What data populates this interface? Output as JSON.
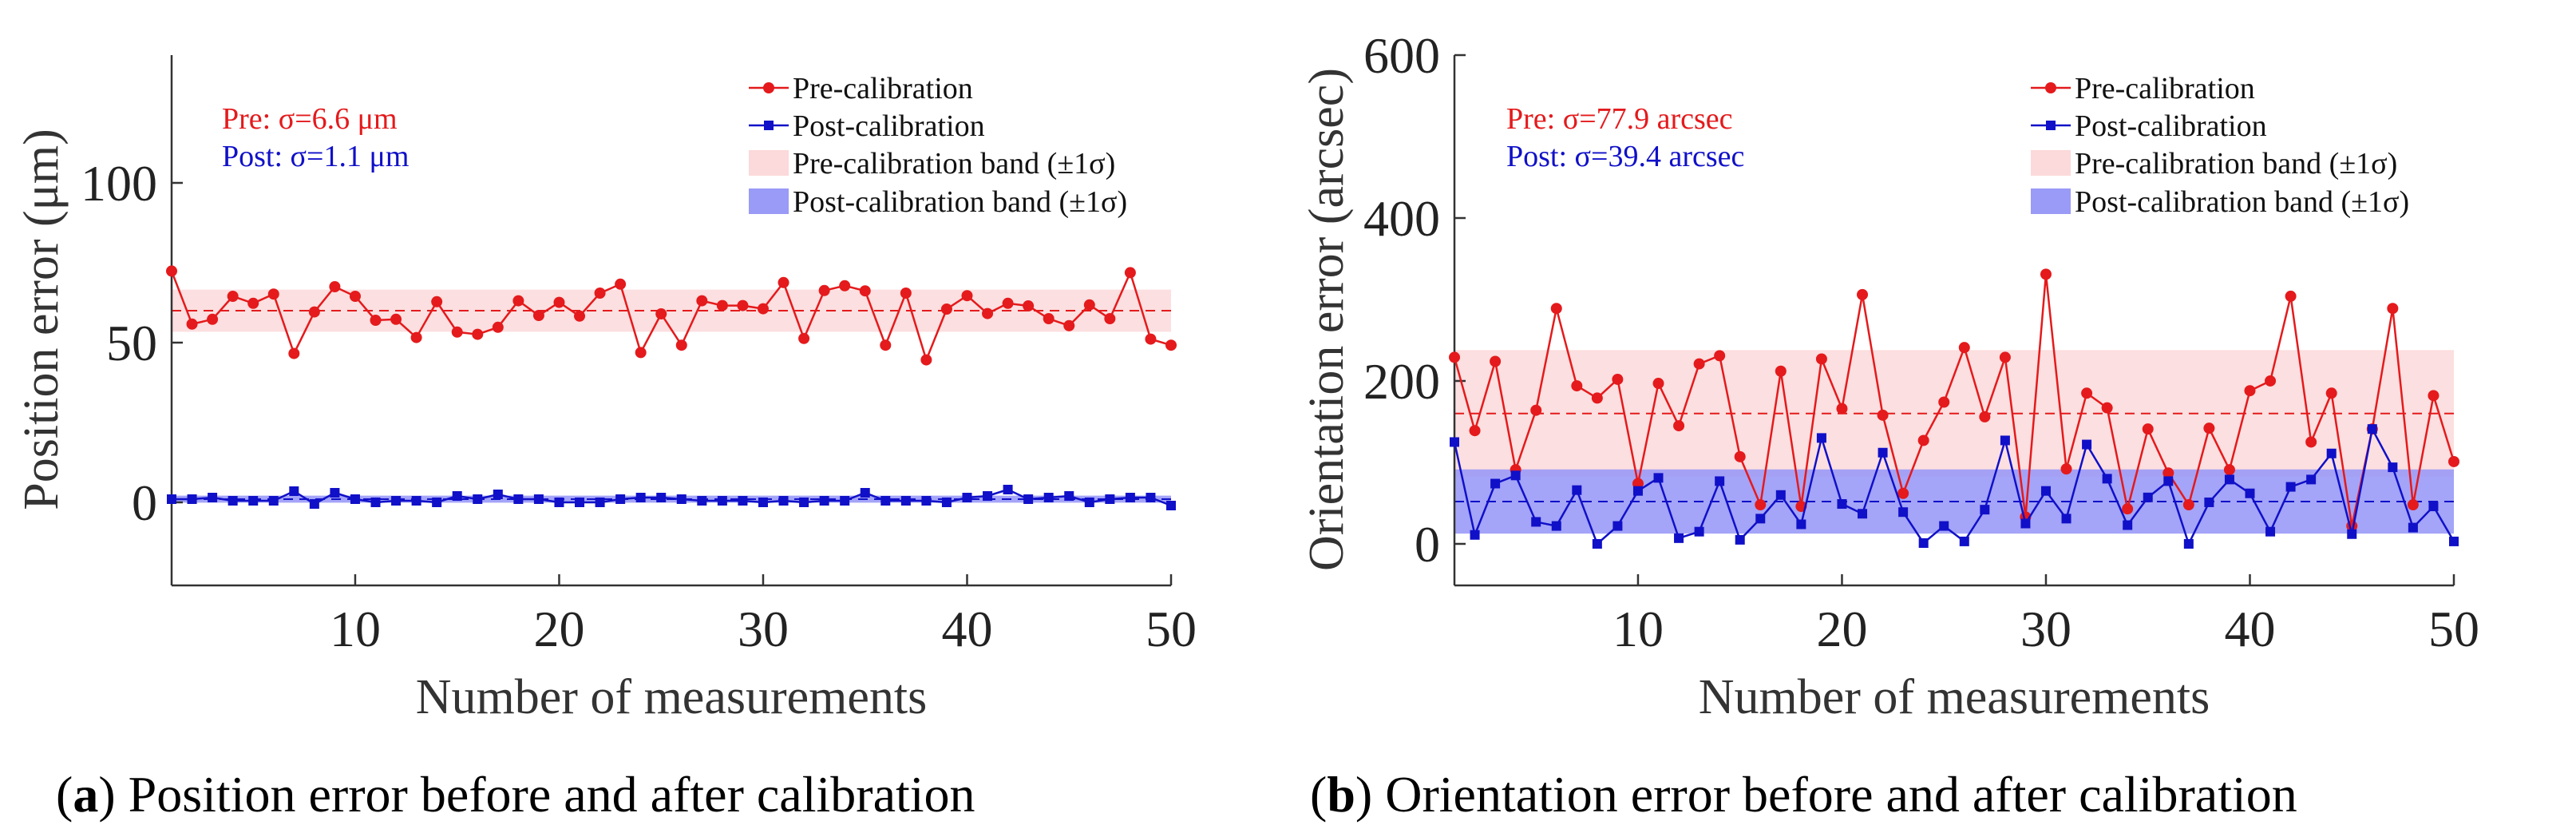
{
  "chart_data": [
    {
      "type": "line",
      "panel_label": "a",
      "caption": "Position error before and after calibration",
      "xlabel": "Number of measurements",
      "ylabel": "Position error (μm)",
      "xlim": [
        1,
        50
      ],
      "ylim": [
        -26,
        140
      ],
      "xticks": [
        10,
        20,
        30,
        40,
        50
      ],
      "yticks": [
        0,
        50,
        100
      ],
      "annotations": {
        "pre": "Pre: σ=6.6 μm",
        "post": "Post: σ=1.1 μm"
      },
      "legend": [
        "Pre-calibration",
        "Post-calibration",
        "Pre-calibration band (±1σ)",
        "Post-calibration band (±1σ)"
      ],
      "legend_position": "top-right",
      "x": [
        1,
        2,
        3,
        4,
        5,
        6,
        7,
        8,
        9,
        10,
        11,
        12,
        13,
        14,
        15,
        16,
        17,
        18,
        19,
        20,
        21,
        22,
        23,
        24,
        25,
        26,
        27,
        28,
        29,
        30,
        31,
        32,
        33,
        34,
        35,
        36,
        37,
        38,
        39,
        40,
        41,
        42,
        43,
        44,
        45,
        46,
        47,
        48,
        49,
        50
      ],
      "series": [
        {
          "name": "Pre-calibration",
          "color": "#e41a1c",
          "marker": "circle",
          "mean": 60.0,
          "sigma": 6.6,
          "values": [
            72.4,
            55.8,
            57.3,
            64.5,
            62.3,
            65.2,
            46.6,
            59.6,
            67.5,
            64.5,
            57.0,
            57.3,
            51.6,
            62.8,
            53.3,
            52.6,
            54.8,
            63.1,
            58.5,
            62.6,
            58.3,
            65.5,
            68.3,
            46.9,
            59.0,
            49.2,
            63.1,
            61.6,
            61.6,
            60.6,
            68.8,
            51.3,
            66.3,
            67.8,
            66.2,
            49.2,
            65.5,
            44.6,
            60.5,
            64.7,
            59.1,
            62.3,
            61.5,
            57.5,
            55.3,
            61.8,
            57.5,
            71.9,
            51.1,
            49.2
          ]
        },
        {
          "name": "Post-calibration",
          "color": "#1010c8",
          "marker": "square",
          "mean": 1.0,
          "sigma": 1.1,
          "values": [
            1,
            1,
            1.5,
            0.5,
            0.5,
            0.5,
            3.5,
            -0.5,
            3,
            1,
            0,
            0.5,
            0.5,
            0,
            2,
            1,
            2.5,
            1,
            1,
            0,
            0,
            0,
            1,
            1.5,
            1.5,
            1,
            0.5,
            0.5,
            0.5,
            0,
            0.5,
            0,
            0.5,
            0.5,
            3,
            0.5,
            0.5,
            0.5,
            0,
            1.5,
            2,
            4,
            1,
            1.5,
            2,
            0,
            1,
            1.5,
            1.5,
            -1
          ]
        }
      ]
    },
    {
      "type": "line",
      "panel_label": "b",
      "caption": "Orientation error before and after calibration",
      "xlabel": "Number of measurements",
      "ylabel": "Orientation error (arcsec)",
      "xlim": [
        1,
        50
      ],
      "ylim": [
        -51,
        600
      ],
      "xticks": [
        10,
        20,
        30,
        40,
        50
      ],
      "yticks": [
        0,
        200,
        400,
        600
      ],
      "annotations": {
        "pre": "Pre: σ=77.9 arcsec",
        "post": "Post: σ=39.4 arcsec"
      },
      "legend": [
        "Pre-calibration",
        "Post-calibration",
        "Pre-calibration band (±1σ)",
        "Post-calibration band (±1σ)"
      ],
      "legend_position": "top-right",
      "x": [
        1,
        2,
        3,
        4,
        5,
        6,
        7,
        8,
        9,
        10,
        11,
        12,
        13,
        14,
        15,
        16,
        17,
        18,
        19,
        20,
        21,
        22,
        23,
        24,
        25,
        26,
        27,
        28,
        29,
        30,
        31,
        32,
        33,
        34,
        35,
        36,
        37,
        38,
        39,
        40,
        41,
        42,
        43,
        44,
        45,
        46,
        47,
        48,
        49,
        50
      ],
      "series": [
        {
          "name": "Pre-calibration",
          "color": "#e41a1c",
          "marker": "circle",
          "mean": 160,
          "sigma": 77.9,
          "values": [
            229,
            139,
            224,
            91,
            164,
            289,
            194,
            179,
            202,
            74,
            197,
            145,
            221,
            231,
            107,
            48,
            212,
            46,
            227,
            166,
            306,
            158,
            62,
            127,
            174,
            241,
            156,
            229,
            33,
            331,
            92,
            185,
            167,
            43,
            141,
            87,
            48,
            142,
            91,
            188,
            200,
            304,
            125,
            185,
            22,
            141,
            289,
            48,
            182,
            101
          ]
        },
        {
          "name": "Post-calibration",
          "color": "#1010c8",
          "marker": "square",
          "mean": 52,
          "sigma": 39.4,
          "values": [
            125,
            11,
            74,
            84,
            27,
            22,
            66,
            0,
            22,
            65,
            81,
            7,
            15,
            77,
            5,
            31,
            60,
            24,
            130,
            49,
            37,
            112,
            39,
            1,
            22,
            3,
            42,
            127,
            25,
            65,
            31,
            122,
            80,
            23,
            57,
            77,
            0,
            51,
            79,
            62,
            15,
            70,
            79,
            111,
            12,
            141,
            94,
            20,
            46,
            3
          ]
        }
      ]
    }
  ]
}
